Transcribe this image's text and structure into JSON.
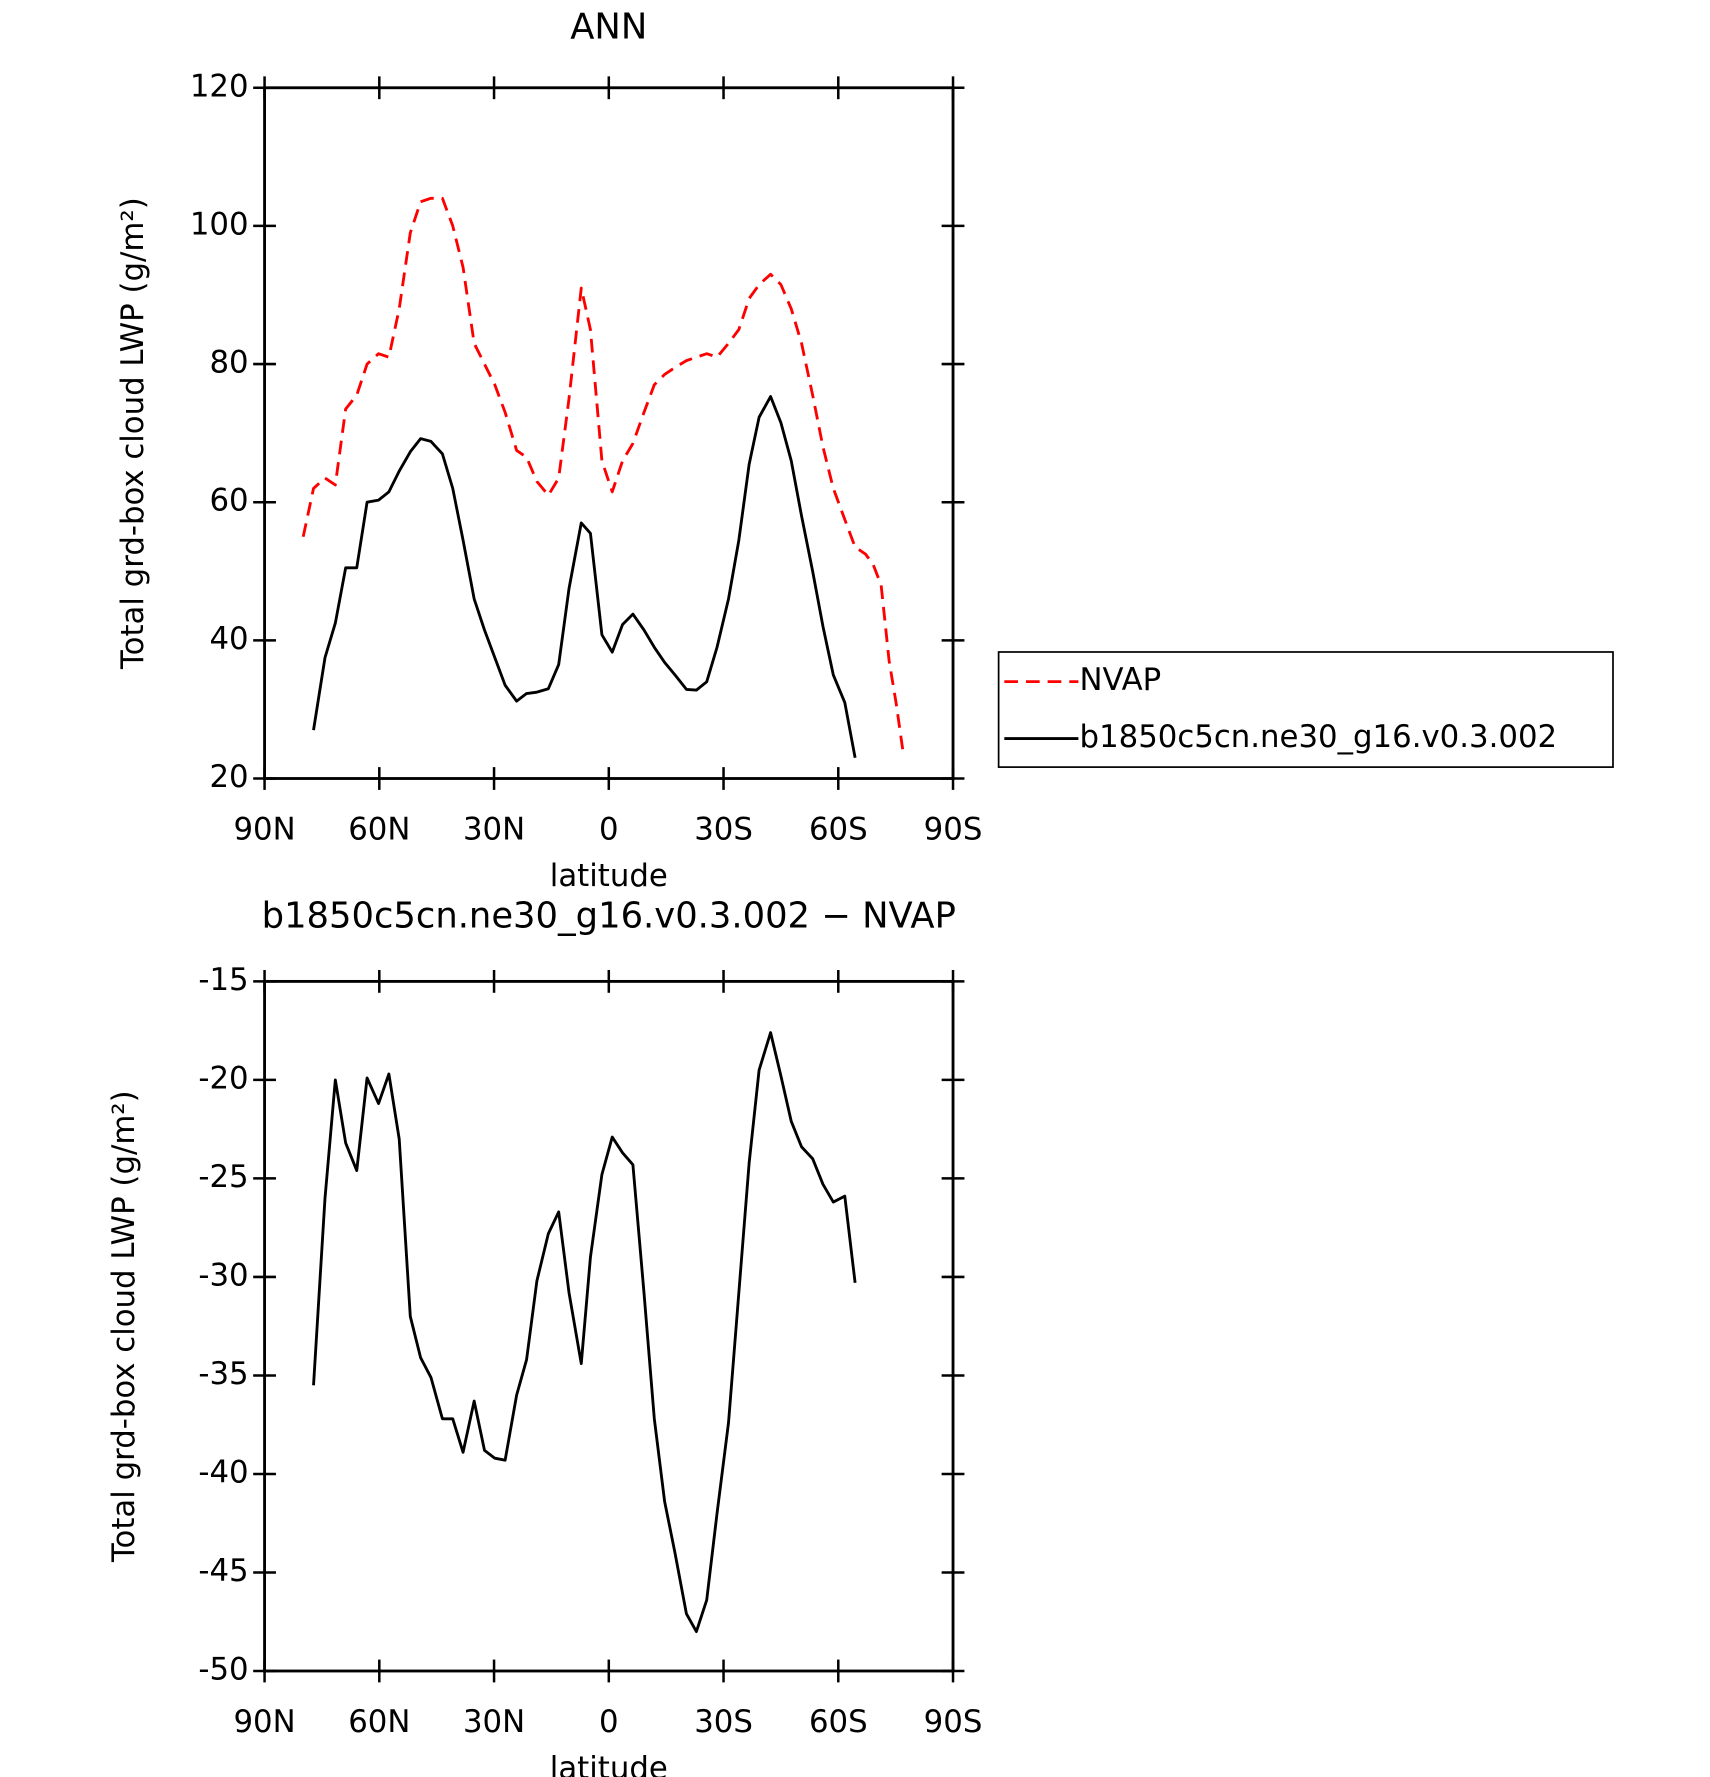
{
  "chart_data": [
    {
      "type": "line",
      "title": "ANN",
      "x_label": "latitude",
      "y_label": "Total grd-box cloud LWP (g/m²)",
      "x": [
        79.9,
        77.2,
        74.2,
        71.5,
        68.8,
        65.9,
        63.2,
        60.2,
        57.5,
        54.8,
        51.9,
        49.2,
        46.5,
        43.5,
        40.8,
        38.1,
        35.2,
        32.5,
        29.8,
        27.1,
        24.1,
        21.5,
        18.8,
        15.8,
        13.1,
        10.4,
        7.2,
        4.8,
        1.8,
        -0.9,
        -3.6,
        -6.3,
        -9.2,
        -11.9,
        -14.6,
        -17.3,
        -20.3,
        -22.9,
        -25.6,
        -28.3,
        -31.3,
        -34.0,
        -36.7,
        -39.3,
        -42.3,
        -45.0,
        -47.7,
        -50.4,
        -53.3,
        -56.0,
        -58.7,
        -61.7,
        -64.4,
        -67.1,
        -69.1,
        -71.2,
        -73.3,
        -75.1,
        -76.9
      ],
      "series": [
        {
          "name": "NVAP",
          "color": "#ff0000",
          "dashed": true,
          "values": [
            55,
            62,
            63.5,
            62.5,
            73.5,
            75.5,
            80,
            81.5,
            81,
            88,
            99,
            103.5,
            104,
            104,
            100,
            94,
            83,
            80,
            77,
            73,
            67.5,
            66.5,
            63,
            61,
            63.5,
            75,
            91,
            85,
            66,
            61.5,
            66,
            68.5,
            73,
            77,
            78.5,
            79.5,
            80.5,
            81,
            81.5,
            81,
            83,
            85,
            89.5,
            91.5,
            93,
            91.5,
            88,
            83,
            75.5,
            68,
            62,
            57.5,
            53.5,
            52.5,
            51,
            48,
            37,
            31,
            24
          ]
        },
        {
          "name": "b1850c5cn.ne30_g16.v0.3.002",
          "color": "#000000",
          "dashed": false,
          "values": [
            null,
            27,
            37.5,
            42.5,
            50.5,
            50.5,
            60,
            60.3,
            61.5,
            64.5,
            67.3,
            69.2,
            68.8,
            67,
            62,
            54.5,
            46,
            41.5,
            37.5,
            33.5,
            31.2,
            32.3,
            32.5,
            33,
            36.5,
            47.5,
            57,
            55.5,
            40.8,
            38.3,
            42.3,
            43.8,
            41.5,
            39,
            36.8,
            35,
            32.9,
            32.8,
            34,
            39,
            46,
            54.5,
            65.5,
            72.3,
            75.3,
            71.5,
            66,
            58,
            50,
            42,
            35,
            31,
            23,
            null,
            null,
            null,
            null,
            null,
            null
          ]
        }
      ],
      "xlim": [
        90,
        -90
      ],
      "xticks": [
        {
          "value": 90,
          "label": "90N"
        },
        {
          "value": 60,
          "label": "60N"
        },
        {
          "value": 30,
          "label": "30N"
        },
        0,
        {
          "value": -30,
          "label": "30S"
        },
        {
          "value": -60,
          "label": "60S"
        },
        {
          "value": -90,
          "label": "90S"
        }
      ],
      "ylim": [
        20,
        120
      ],
      "yticks": [
        20,
        40,
        60,
        80,
        100,
        120
      ],
      "legend": "right"
    },
    {
      "type": "line",
      "title": "b1850c5cn.ne30_g16.v0.3.002 − NVAP",
      "x_label": "latitude",
      "y_label": "Total grd-box cloud LWP (g/m²)",
      "x": [
        77.2,
        74.2,
        71.5,
        68.8,
        65.9,
        63.2,
        60.2,
        57.5,
        54.8,
        51.9,
        49.2,
        46.5,
        43.5,
        40.8,
        38.1,
        35.2,
        32.5,
        29.8,
        27.1,
        24.1,
        21.5,
        18.8,
        15.8,
        13.1,
        10.4,
        7.2,
        4.8,
        1.8,
        -0.9,
        -3.6,
        -6.3,
        -9.2,
        -11.9,
        -14.6,
        -17.3,
        -20.3,
        -22.9,
        -25.6,
        -28.3,
        -31.3,
        -34.0,
        -36.7,
        -39.3,
        -42.3,
        -45.0,
        -47.7,
        -50.4,
        -53.3,
        -56.0,
        -58.7,
        -61.7,
        -64.4
      ],
      "color": "#000000",
      "values": [
        -35.5,
        -26,
        -20,
        -23.2,
        -24.6,
        -19.9,
        -21.2,
        -19.7,
        -23,
        -32,
        -34.1,
        -35.1,
        -37.2,
        -37.2,
        -38.9,
        -36.3,
        -38.8,
        -39.2,
        -39.3,
        -36,
        -34.2,
        -30.2,
        -27.8,
        -26.7,
        -30.8,
        -34.4,
        -29,
        -24.8,
        -22.9,
        -23.7,
        -24.3,
        -30.8,
        -37.2,
        -41.4,
        -44,
        -47.1,
        -48,
        -46.4,
        -42,
        -37.4,
        -30.8,
        -24.2,
        -19.5,
        -17.6,
        -19.8,
        -22.1,
        -23.4,
        -24,
        -25.3,
        -26.2,
        -25.9,
        -30.3
      ],
      "xlim": [
        90,
        -90
      ],
      "xticks": [
        {
          "value": 90,
          "label": "90N"
        },
        {
          "value": 60,
          "label": "60N"
        },
        {
          "value": 30,
          "label": "30N"
        },
        0,
        {
          "value": -30,
          "label": "30S"
        },
        {
          "value": -60,
          "label": "60S"
        },
        {
          "value": -90,
          "label": "90S"
        }
      ],
      "ylim": [
        -50,
        -15
      ],
      "yticks": [
        -50,
        -45,
        -40,
        -35,
        -30,
        -25,
        -20,
        -15
      ]
    }
  ]
}
